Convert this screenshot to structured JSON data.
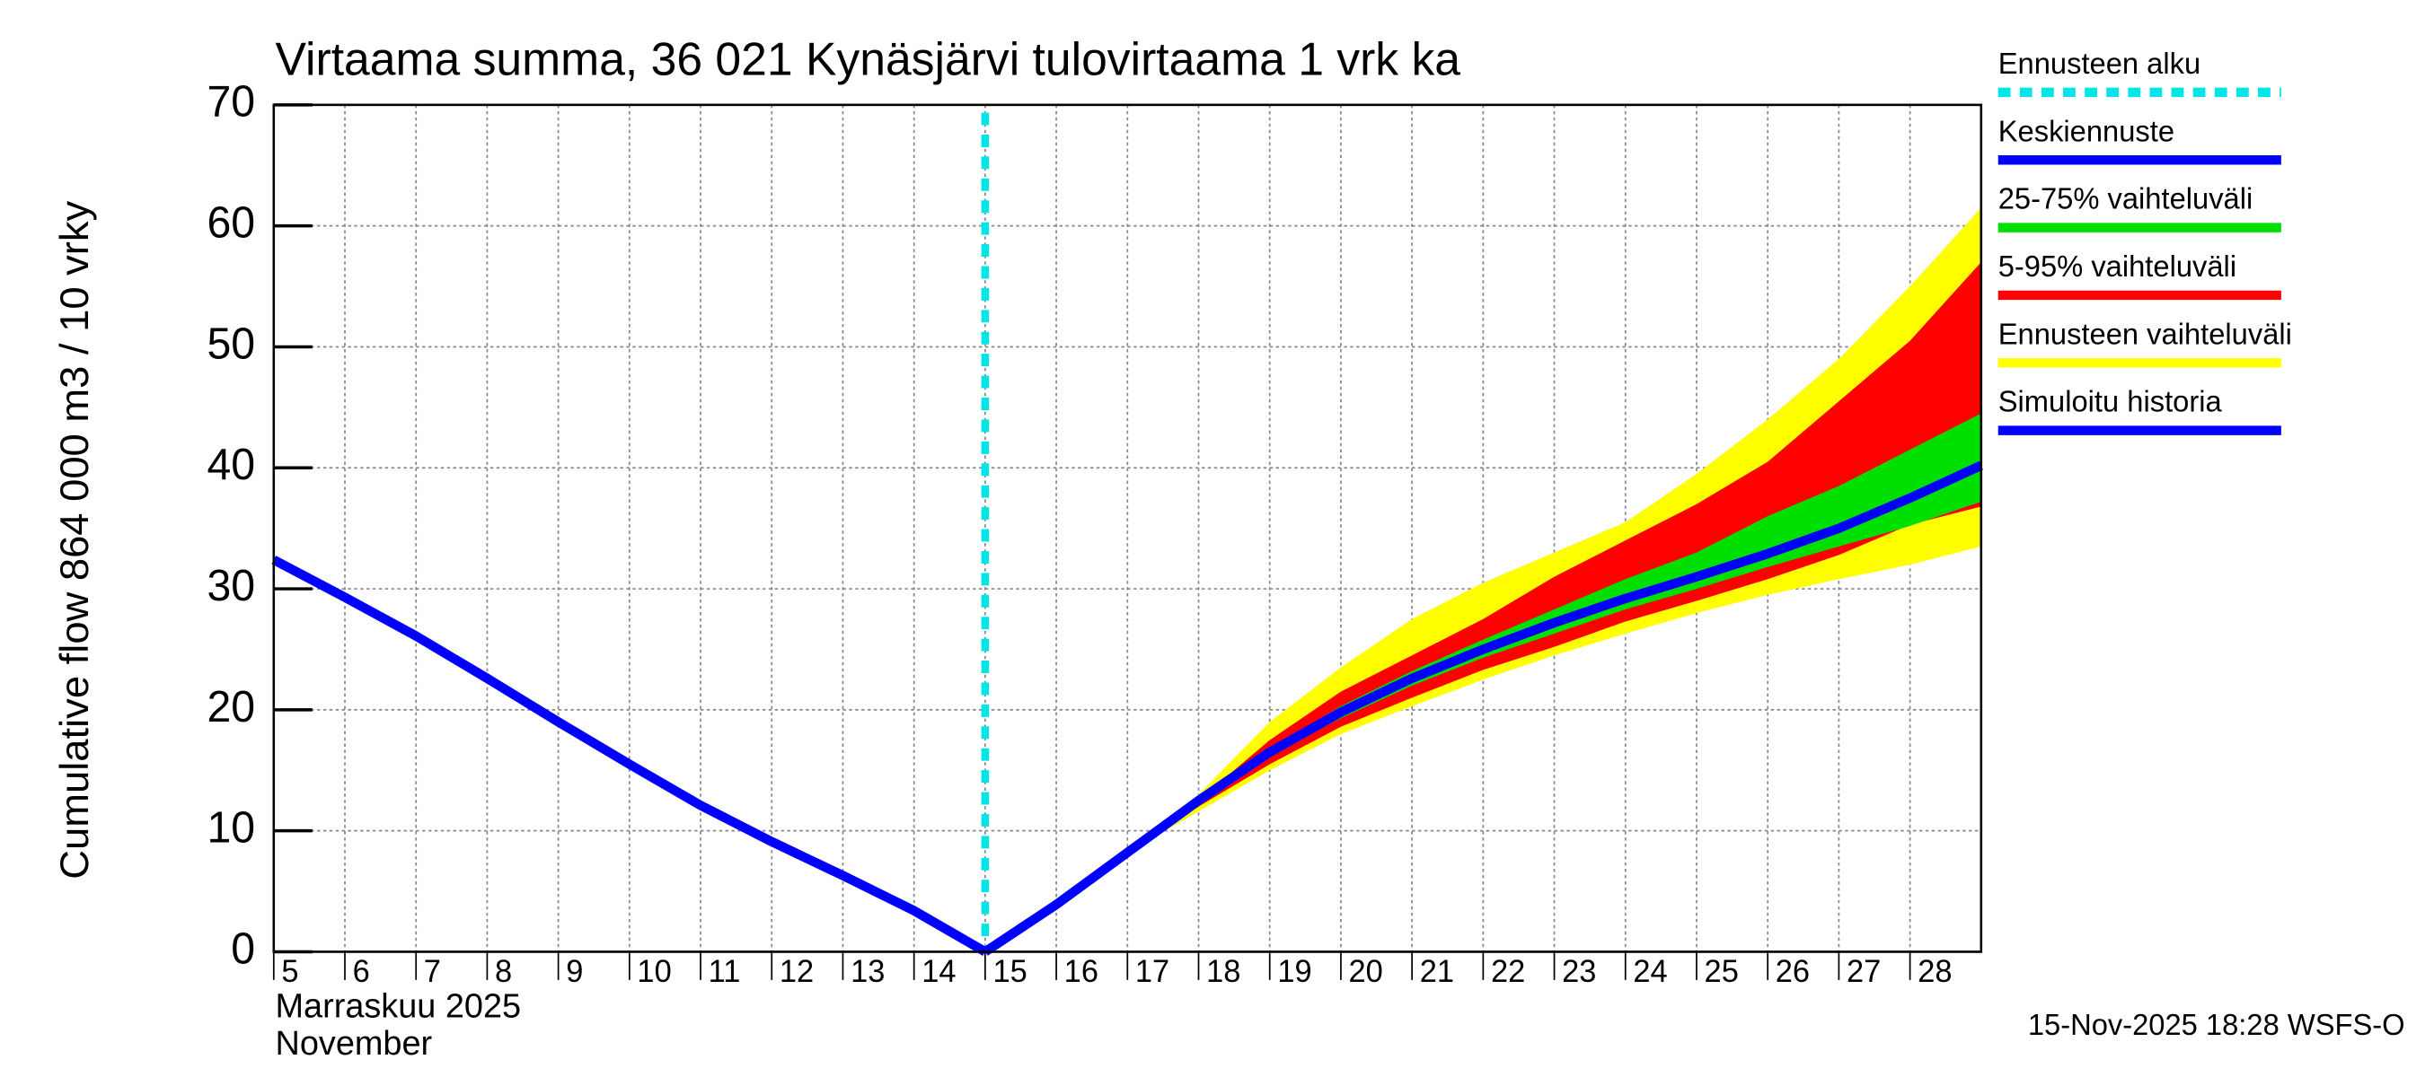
{
  "chart_data": {
    "type": "line",
    "title": "Virtaama summa, 36 021 Kynäsjärvi tulovirtaama 1 vrk ka",
    "y_label": "Cumulative flow    864 000 m3 / 10 vrky",
    "x_label_lines": [
      "Marraskuu 2025",
      "November"
    ],
    "timestamp": "15-Nov-2025 18:28 WSFS-O",
    "xlim": [
      5,
      29
    ],
    "xticks": [
      5,
      6,
      7,
      8,
      9,
      10,
      11,
      12,
      13,
      14,
      15,
      16,
      17,
      18,
      19,
      20,
      21,
      22,
      23,
      24,
      25,
      26,
      27,
      28
    ],
    "ylim": [
      0,
      70
    ],
    "yticks": [
      0,
      10,
      20,
      30,
      40,
      50,
      60,
      70
    ],
    "grid": true,
    "series": [
      {
        "name": "Ennusteen alku",
        "color": "#00e5e5",
        "kind": "vline",
        "x": 15
      },
      {
        "name": "Keskiennuste",
        "color": "#0000ff",
        "kind": "line",
        "x": [
          15,
          16,
          17,
          18,
          19,
          20,
          21,
          22,
          23,
          24,
          25,
          26,
          27,
          28,
          29
        ],
        "values": [
          0,
          3.9,
          8.2,
          12.5,
          16.5,
          19.8,
          22.6,
          25.0,
          27.2,
          29.2,
          31.0,
          32.9,
          35.0,
          37.5,
          40.2
        ]
      },
      {
        "name": "25-75% vaihteluväli",
        "color": "#00e000",
        "kind": "band",
        "x": [
          17,
          18,
          19,
          20,
          21,
          22,
          23,
          24,
          25,
          26,
          27,
          28,
          29
        ],
        "upper": [
          8.2,
          12.5,
          16.8,
          20.3,
          23.2,
          25.8,
          28.3,
          30.8,
          33,
          36,
          38.5,
          41.5,
          44.5
        ],
        "lower": [
          8.2,
          12.3,
          16.2,
          19.3,
          22,
          24.3,
          26.3,
          28.3,
          30,
          31.8,
          33.5,
          35.2,
          37.2
        ]
      },
      {
        "name": "5-95% vaihteluväli",
        "color": "#ff0000",
        "kind": "band",
        "x": [
          17,
          18,
          19,
          20,
          21,
          22,
          23,
          24,
          25,
          26,
          27,
          28,
          29
        ],
        "upper": [
          8.2,
          12.5,
          17.5,
          21.5,
          24.5,
          27.5,
          31,
          34,
          37,
          40.5,
          45.5,
          50.5,
          57
        ],
        "lower": [
          8.2,
          12,
          15.5,
          18.6,
          21,
          23.3,
          25.2,
          27.3,
          29,
          30.8,
          32.8,
          35.3,
          36.8
        ]
      },
      {
        "name": "Ennusteen vaihteluväli",
        "color": "#ffff00",
        "kind": "band",
        "x": [
          17,
          18,
          19,
          20,
          21,
          22,
          23,
          24,
          25,
          26,
          27,
          28,
          29
        ],
        "upper": [
          8.2,
          13,
          19,
          23.5,
          27.5,
          30.5,
          33,
          35.5,
          39.5,
          44,
          49,
          55,
          61.5
        ],
        "lower": [
          8.2,
          11.6,
          15,
          18,
          20.3,
          22.5,
          24.5,
          26.3,
          28,
          29.5,
          30.8,
          32,
          33.5
        ]
      },
      {
        "name": "Simuloitu historia",
        "color": "#0000ff",
        "kind": "line",
        "x": [
          5,
          6,
          7,
          8,
          9,
          10,
          11,
          12,
          13,
          14,
          15
        ],
        "values": [
          32.4,
          29.3,
          26.1,
          22.6,
          19.0,
          15.5,
          12.1,
          9.1,
          6.3,
          3.4,
          0
        ]
      }
    ]
  }
}
